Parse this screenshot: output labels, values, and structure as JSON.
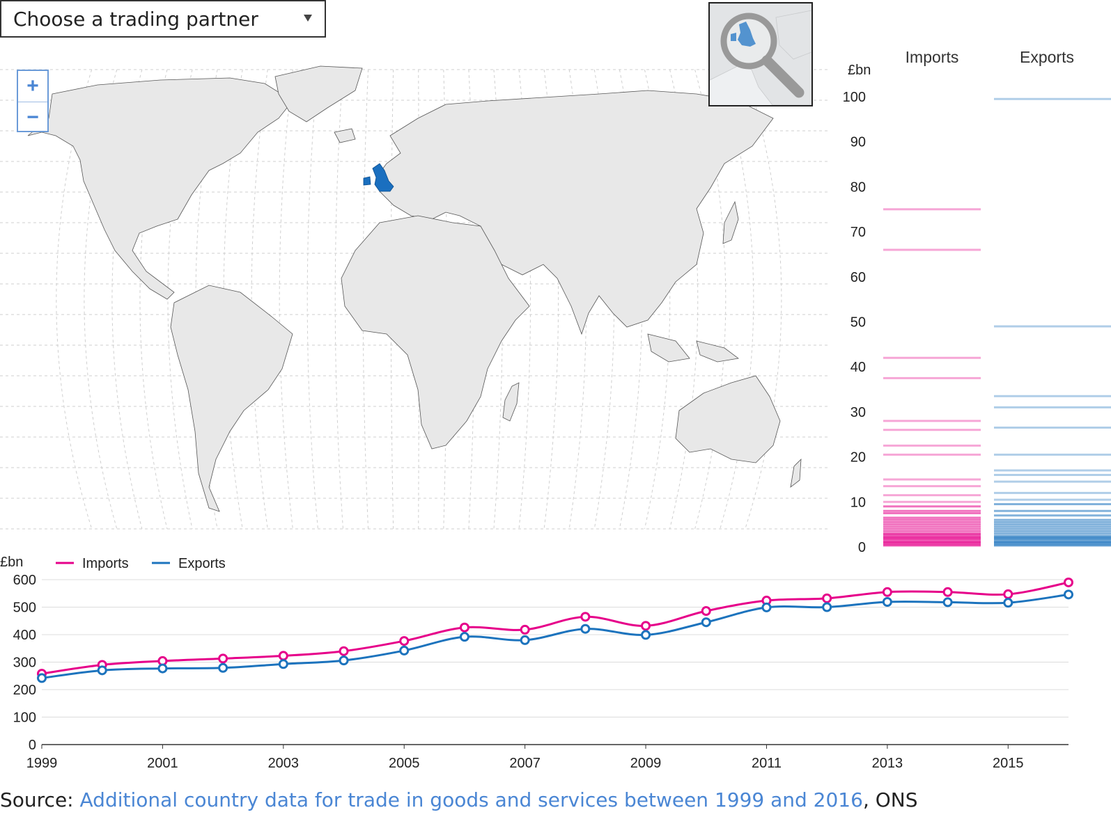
{
  "selector": {
    "label": "Choose a trading partner",
    "caret_icon": "caret-down-icon"
  },
  "zoom": {
    "in_label": "+",
    "out_label": "−"
  },
  "colors": {
    "imports": "#e6008a",
    "exports": "#1c73bd",
    "highlight": "#1a6fbf",
    "land": "#e8e8e8"
  },
  "strip": {
    "unit": "£bn",
    "headers": [
      "Imports",
      "Exports"
    ],
    "ticks": [
      0,
      10,
      20,
      30,
      40,
      50,
      60,
      70,
      80,
      90,
      100
    ]
  },
  "legend": {
    "unit": "£bn",
    "imports": "Imports",
    "exports": "Exports"
  },
  "chart_data": [
    {
      "type": "scatter",
      "ylabel": "£bn",
      "ylim": [
        0,
        100
      ],
      "series": [
        {
          "name": "Imports",
          "values": [
            75,
            66,
            42,
            37.5,
            28,
            26,
            22.5,
            20.5,
            15,
            13.5,
            11.5,
            10,
            9,
            8,
            7.5,
            6.5,
            6,
            5.5,
            5,
            4.5,
            4,
            3.5,
            3,
            2.8,
            2.5,
            2.2,
            2,
            1.8,
            1.5,
            1.2,
            1,
            0.8,
            0.5,
            0.3
          ]
        },
        {
          "name": "Exports",
          "values": [
            99.5,
            49,
            33.5,
            31,
            26.5,
            20.5,
            17,
            16,
            14.5,
            12,
            10.5,
            9.5,
            8,
            7,
            6,
            5.5,
            5,
            4.5,
            4,
            3.5,
            3,
            2.5,
            2.2,
            2,
            1.8,
            1.5,
            1.2,
            1,
            0.8,
            0.5,
            0.3
          ]
        }
      ]
    },
    {
      "type": "line",
      "ylabel": "£bn",
      "ylim": [
        0,
        600
      ],
      "x": [
        1999,
        2000,
        2001,
        2002,
        2003,
        2004,
        2005,
        2006,
        2007,
        2008,
        2009,
        2010,
        2011,
        2012,
        2013,
        2014,
        2015,
        2016
      ],
      "xticks": [
        "1999",
        "2001",
        "2003",
        "2005",
        "2007",
        "2009",
        "2011",
        "2013",
        "2015"
      ],
      "yticks": [
        0,
        100,
        200,
        300,
        400,
        500,
        600
      ],
      "series": [
        {
          "name": "Imports",
          "values": [
            258,
            290,
            304,
            313,
            323,
            340,
            377,
            426,
            418,
            465,
            432,
            486,
            524,
            532,
            555,
            555,
            547,
            590
          ]
        },
        {
          "name": "Exports",
          "values": [
            242,
            270,
            277,
            279,
            293,
            306,
            342,
            392,
            380,
            421,
            399,
            445,
            499,
            500,
            519,
            518,
            516,
            546
          ]
        }
      ]
    }
  ],
  "source": {
    "prefix": "Source: ",
    "link_text": "Additional country data for trade in goods and services between 1999 and 2016",
    "suffix": ", ONS"
  }
}
